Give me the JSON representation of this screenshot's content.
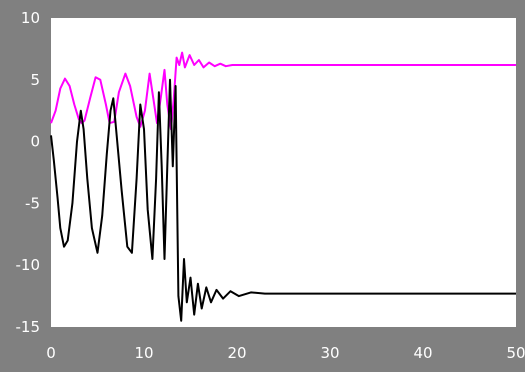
{
  "chart_data": {
    "type": "line",
    "title": "",
    "xlabel": "",
    "ylabel": "",
    "xlim": [
      0,
      50
    ],
    "ylim": [
      -15,
      10
    ],
    "xticks": [
      0,
      10,
      20,
      30,
      40,
      50
    ],
    "yticks": [
      10,
      5,
      0,
      -5,
      -10,
      -15
    ],
    "grid": false,
    "legend": "none",
    "colors": {
      "figure_background": "#808080",
      "plot_background": "#ffffff"
    },
    "series": [
      {
        "color": "#ff00ff",
        "x": [
          0,
          0.5,
          1,
          1.5,
          2,
          2.5,
          3,
          3.3,
          3.6,
          4.2,
          4.8,
          5.3,
          5.9,
          6.3,
          6.8,
          7.3,
          8.0,
          8.5,
          9.2,
          9.6,
          10.1,
          10.6,
          11.0,
          11.4,
          11.8,
          12.2,
          12.5,
          12.9,
          13.2,
          13.5,
          13.8,
          14.1,
          14.4,
          14.9,
          15.4,
          15.9,
          16.4,
          17.0,
          17.6,
          18.2,
          18.8,
          19.5,
          20.5,
          22,
          25,
          30,
          35,
          40,
          45,
          50
        ],
        "y": [
          1.5,
          2.5,
          4.3,
          5.1,
          4.5,
          3.0,
          1.8,
          1.5,
          1.7,
          3.5,
          5.2,
          5.0,
          3.0,
          1.5,
          1.6,
          4.0,
          5.5,
          4.5,
          2.0,
          1.2,
          2.5,
          5.5,
          3.5,
          1.5,
          3.5,
          5.8,
          3.0,
          1.0,
          3.5,
          6.8,
          6.2,
          7.2,
          6.0,
          7.0,
          6.2,
          6.6,
          6.0,
          6.4,
          6.1,
          6.3,
          6.1,
          6.2,
          6.2,
          6.2,
          6.2,
          6.2,
          6.2,
          6.2,
          6.2,
          6.2
        ]
      },
      {
        "color": "#000000",
        "x": [
          0,
          0.3,
          0.7,
          1.0,
          1.4,
          1.8,
          2.3,
          2.8,
          3.2,
          3.5,
          3.9,
          4.4,
          5.0,
          5.5,
          6.0,
          6.4,
          6.7,
          7.0,
          7.6,
          8.2,
          8.7,
          9.2,
          9.6,
          10.0,
          10.4,
          10.9,
          11.3,
          11.6,
          11.9,
          12.2,
          12.5,
          12.8,
          13.1,
          13.4,
          13.7,
          14.0,
          14.3,
          14.6,
          15.0,
          15.4,
          15.8,
          16.2,
          16.7,
          17.2,
          17.8,
          18.5,
          19.3,
          20.2,
          21.5,
          23,
          30,
          40,
          50
        ],
        "y": [
          0.5,
          -1.5,
          -4.5,
          -7.0,
          -8.5,
          -8.0,
          -5.0,
          0.0,
          2.5,
          1.0,
          -3.0,
          -7.0,
          -9.0,
          -6.0,
          -1.0,
          2.5,
          3.5,
          1.0,
          -4.0,
          -8.5,
          -9.0,
          -3.0,
          3.0,
          1.0,
          -5.5,
          -9.5,
          -3.0,
          4.0,
          -2.0,
          -9.5,
          -2.0,
          5.0,
          -2.0,
          4.5,
          -12.5,
          -14.5,
          -9.5,
          -13.0,
          -11.0,
          -14.0,
          -11.5,
          -13.5,
          -11.8,
          -13.0,
          -12.0,
          -12.7,
          -12.1,
          -12.5,
          -12.2,
          -12.3,
          -12.3,
          -12.3,
          -12.3
        ]
      }
    ]
  }
}
